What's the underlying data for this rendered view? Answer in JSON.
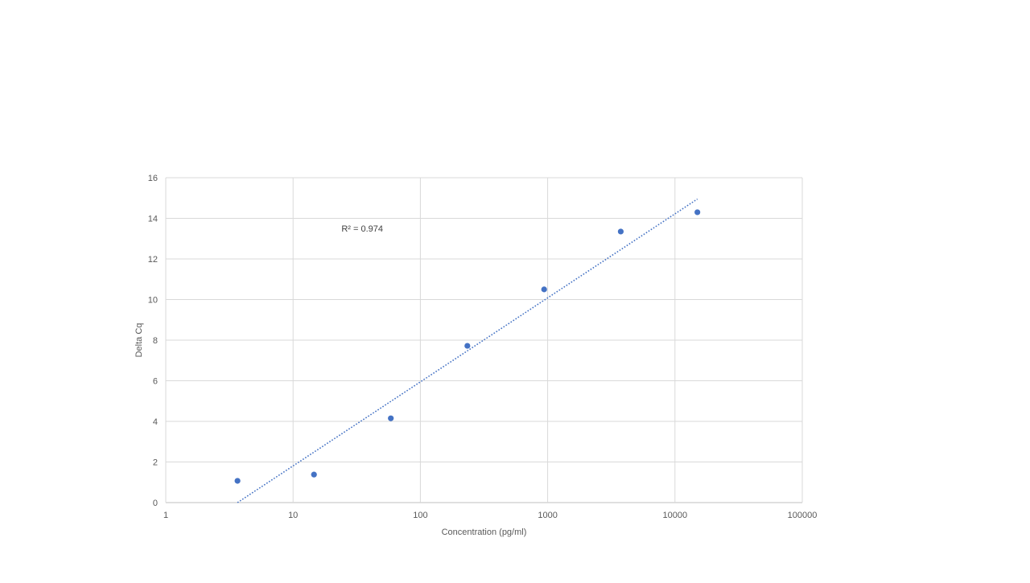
{
  "chart_data": {
    "type": "scatter",
    "title": "",
    "xlabel": "Concentration (pg/ml)",
    "ylabel": "Delta Cq",
    "x_scale": "log",
    "xlim": [
      1,
      100000
    ],
    "ylim": [
      0,
      16
    ],
    "x_ticks": [
      "1",
      "10",
      "100",
      "1000",
      "10000",
      "100000"
    ],
    "y_ticks": [
      "0",
      "2",
      "4",
      "6",
      "8",
      "10",
      "12",
      "14",
      "16"
    ],
    "grid": true,
    "legend": "none",
    "series": [
      {
        "points": [
          {
            "x": 3.66,
            "y": 1.07
          },
          {
            "x": 14.6,
            "y": 1.38
          },
          {
            "x": 58.6,
            "y": 4.15
          },
          {
            "x": 234,
            "y": 7.72
          },
          {
            "x": 938,
            "y": 10.5
          },
          {
            "x": 3750,
            "y": 13.35
          },
          {
            "x": 15000,
            "y": 14.3
          }
        ],
        "color": "#4472C4"
      }
    ],
    "trendline": {
      "type": "logarithmic",
      "from": {
        "x": 3.66,
        "y": 0
      },
      "to": {
        "x": 15000,
        "y": 14.95
      },
      "color": "#4472C4",
      "style": "dotted"
    },
    "annotations": [
      {
        "text": "R² = 0.974",
        "x": 24,
        "y": 13.5
      }
    ]
  }
}
